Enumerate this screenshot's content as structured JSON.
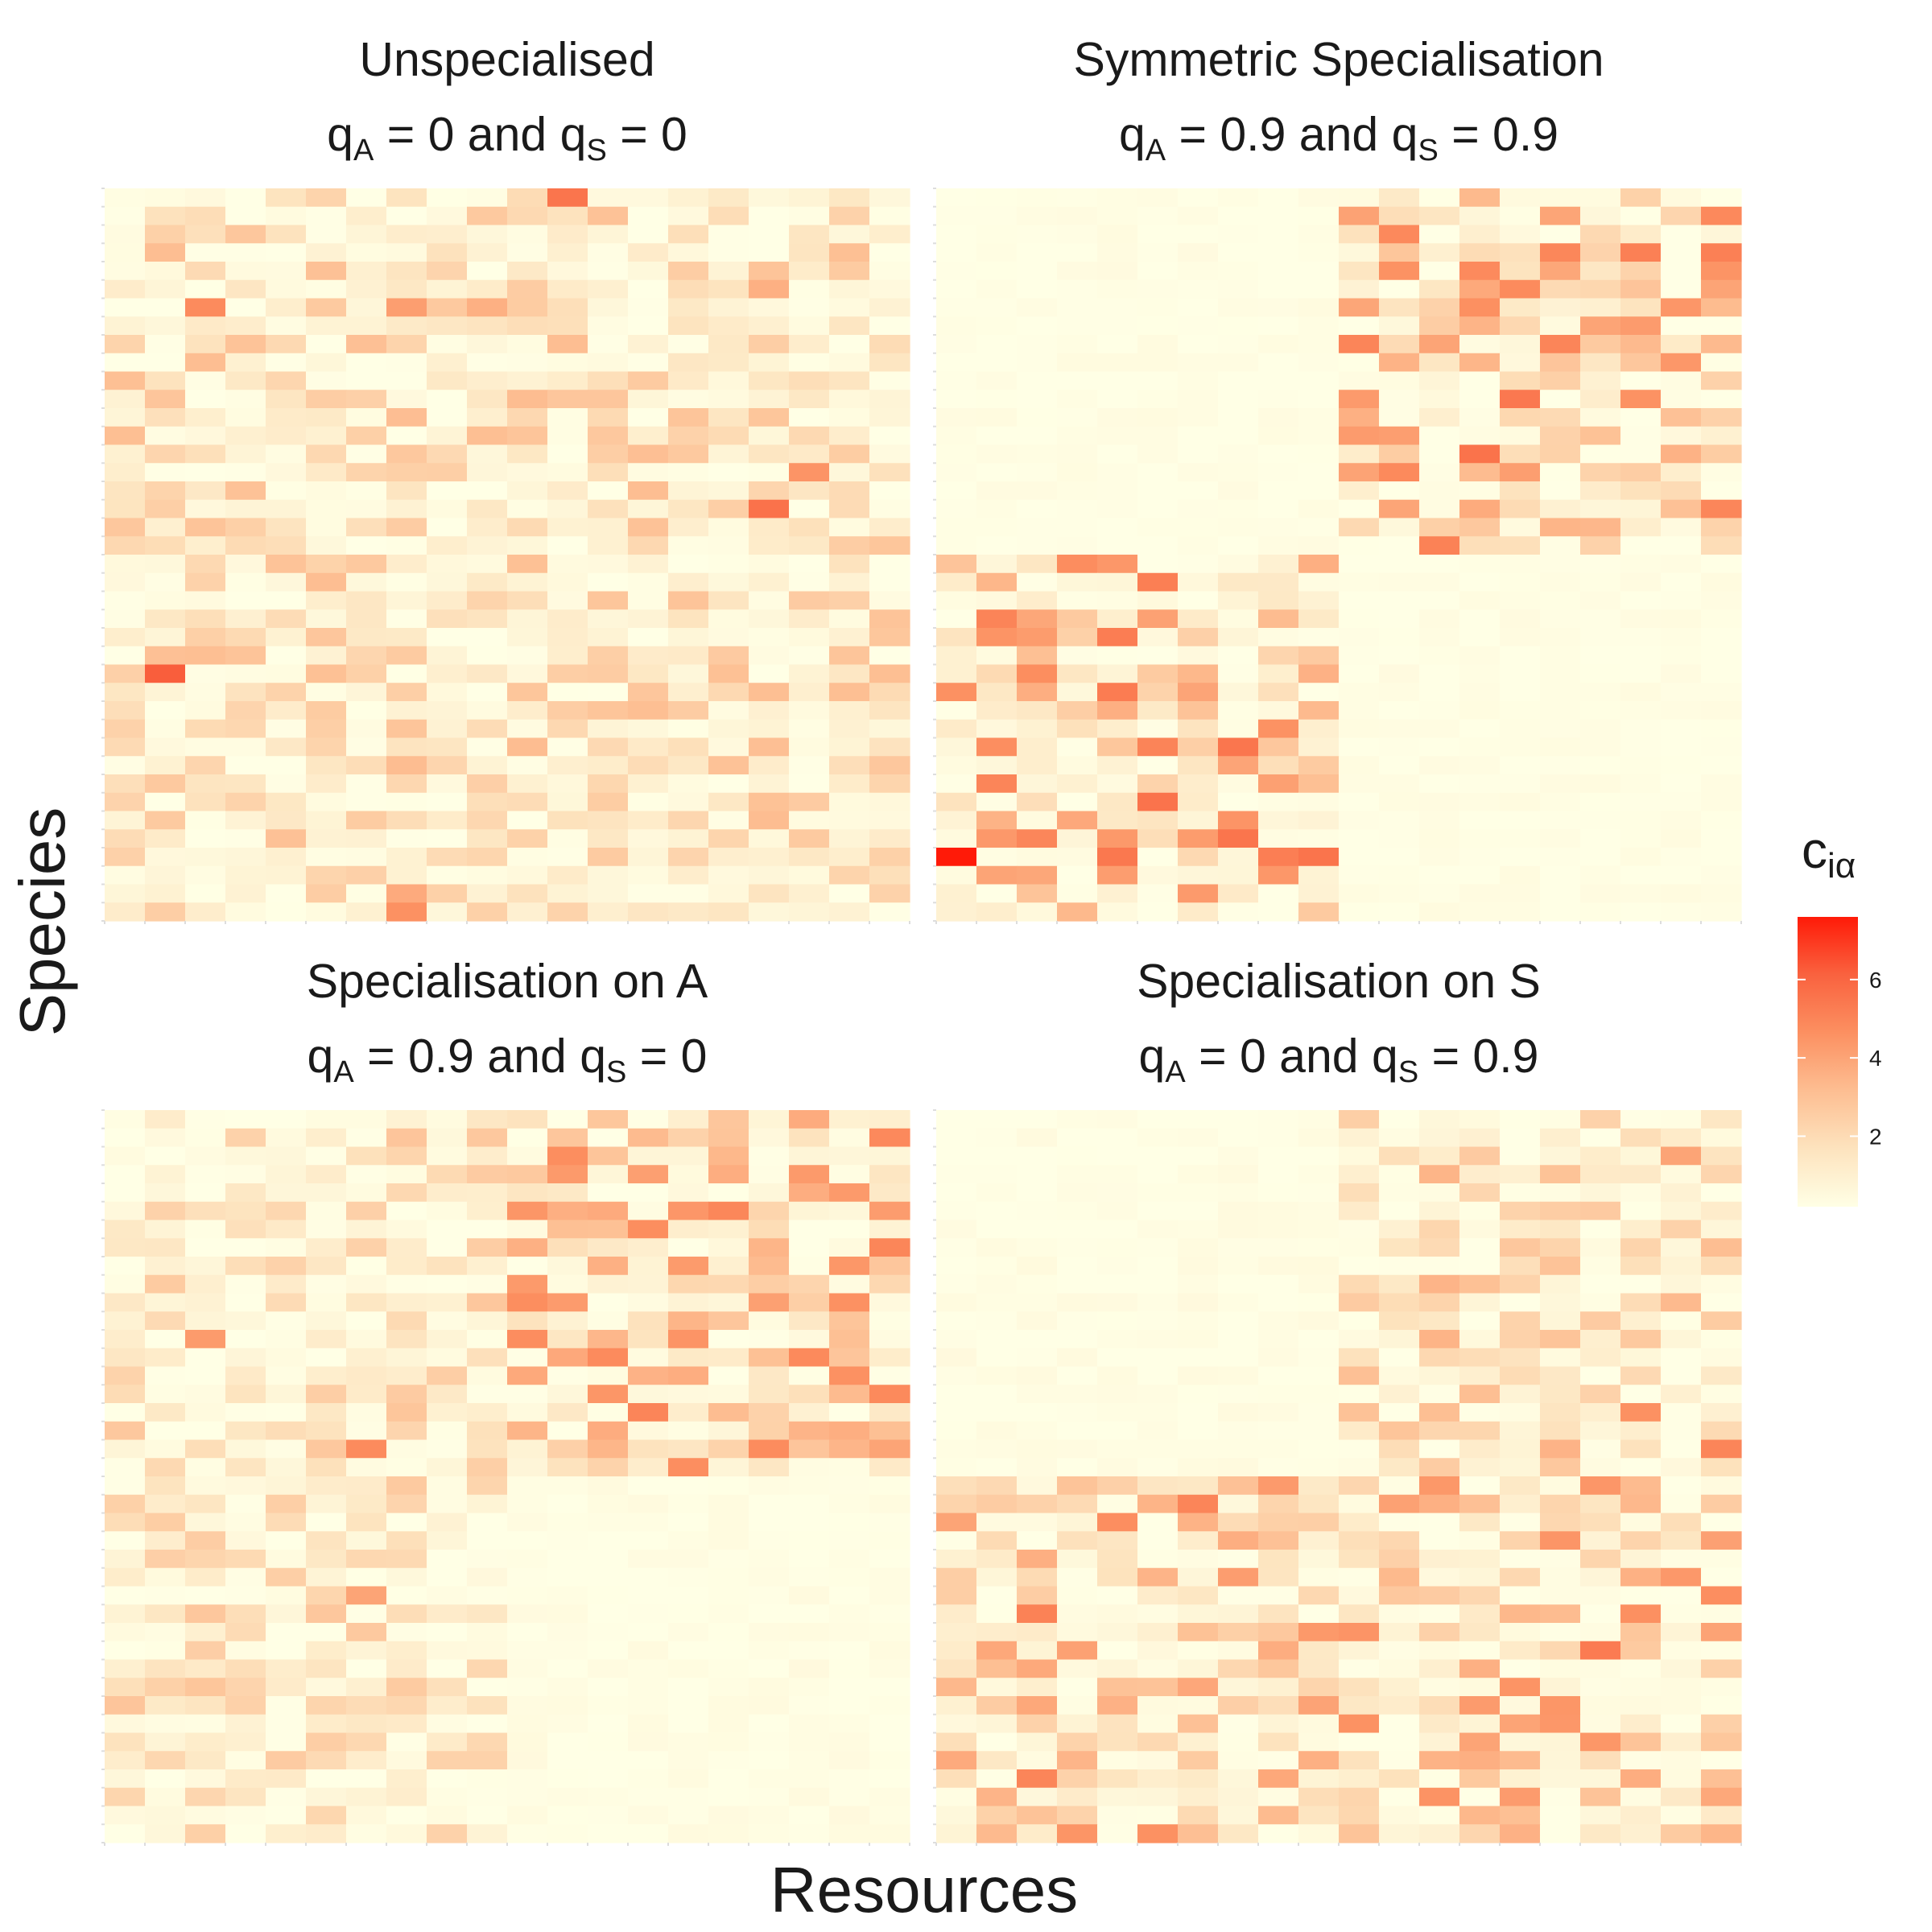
{
  "chart_data": {
    "type": "heatmap",
    "xlabel": "Resources",
    "ylabel": "Species",
    "legend": {
      "title_main": "c",
      "title_subscript": "iα",
      "ticks": [
        2,
        4,
        6
      ],
      "range": [
        0.2,
        7.6
      ],
      "colors": [
        "#FFFFE5",
        "#FDE3BE",
        "#FDBE92",
        "#FC9061",
        "#F9623F",
        "#FF1A08"
      ],
      "position": "right"
    },
    "grid": false,
    "panels": [
      {
        "title": "Unspecialised",
        "subtitle": {
          "q1": "q",
          "q1_sub": "A",
          "q1_val": " = 0 and ",
          "q2": "q",
          "q2_sub": "S",
          "q2_val": " = 0"
        },
        "rows": 40,
        "cols": 20,
        "spec": {
          "block_rows": 20,
          "block_cols": 10,
          "q_A": 0,
          "q_S": 0
        },
        "seed": 11,
        "highlights": [
          [
            0,
            11,
            5.5
          ],
          [
            6,
            2,
            4.8
          ],
          [
            6,
            7,
            4.2
          ],
          [
            6,
            9,
            3.6
          ],
          [
            5,
            16,
            3.6
          ],
          [
            17,
            16,
            5.6
          ],
          [
            15,
            17,
            4.5
          ],
          [
            26,
            1,
            6.2
          ],
          [
            31,
            7,
            3.2
          ],
          [
            39,
            7,
            4.6
          ],
          [
            38,
            7,
            3.8
          ]
        ]
      },
      {
        "title": "Symmetric Specialisation",
        "subtitle": {
          "q1": "q",
          "q1_sub": "A",
          "q1_val": " = 0.9 and ",
          "q2": "q",
          "q2_sub": "S",
          "q2_val": " = 0.9"
        },
        "rows": 40,
        "cols": 20,
        "spec": {
          "block_rows": 20,
          "block_cols": 10,
          "q_A": 0.9,
          "q_S": 0.9
        },
        "seed": 23,
        "highlights": [
          [
            36,
            0,
            7.6
          ],
          [
            21,
            5,
            5.2
          ],
          [
            32,
            1,
            5.0
          ],
          [
            34,
            7,
            4.5
          ],
          [
            8,
            10,
            5.0
          ],
          [
            8,
            15,
            5.0
          ],
          [
            19,
            12,
            5.1
          ],
          [
            13,
            11,
            4.2
          ],
          [
            7,
            16,
            4.0
          ],
          [
            9,
            18,
            4.4
          ]
        ]
      },
      {
        "title": "Specialisation on A",
        "subtitle": {
          "q1": "q",
          "q1_sub": "A",
          "q1_val": " = 0.9 and ",
          "q2": "q",
          "q2_sub": "S",
          "q2_val": " = 0"
        },
        "rows": 40,
        "cols": 20,
        "spec": {
          "block_rows": 20,
          "block_cols": 10,
          "q_A": 0.9,
          "q_S": 0
        },
        "seed": 37,
        "highlights": [
          [
            18,
            6,
            4.8
          ],
          [
            12,
            2,
            4.3
          ],
          [
            16,
            13,
            5.0
          ],
          [
            8,
            14,
            4.3
          ],
          [
            12,
            14,
            4.5
          ],
          [
            14,
            18,
            4.6
          ],
          [
            5,
            12,
            3.8
          ],
          [
            26,
            6,
            4.0
          ]
        ]
      },
      {
        "title": "Specialisation on S",
        "subtitle": {
          "q1": "q",
          "q1_sub": "A",
          "q1_val": " = 0 and ",
          "q2": "q",
          "q2_sub": "S",
          "q2_val": " = 0.9"
        },
        "rows": 40,
        "cols": 20,
        "spec": {
          "block_rows": 20,
          "block_cols": 10,
          "q_A": 0,
          "q_S": 0.9
        },
        "seed": 53,
        "highlights": [
          [
            21,
            6,
            5.0
          ],
          [
            27,
            2,
            5.1
          ],
          [
            29,
            16,
            5.3
          ],
          [
            36,
            2,
            5.0
          ],
          [
            18,
            19,
            5.0
          ],
          [
            26,
            19,
            4.7
          ],
          [
            16,
            17,
            4.6
          ],
          [
            2,
            18,
            4.0
          ],
          [
            33,
            14,
            4.0
          ]
        ]
      }
    ]
  }
}
